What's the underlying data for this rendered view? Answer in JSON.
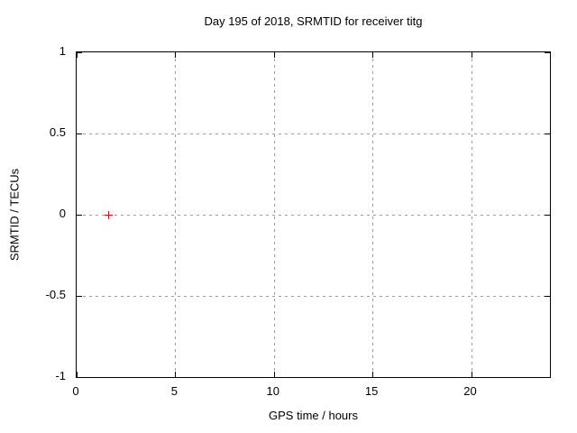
{
  "chart_data": {
    "type": "scatter",
    "title": "Day 195 of 2018, SRMTID for receiver titg",
    "xlabel": "GPS time / hours",
    "ylabel": "SRMTID / TECUs",
    "xlim": [
      0,
      24
    ],
    "ylim": [
      -1,
      1
    ],
    "xticks": [
      0,
      5,
      10,
      15,
      20
    ],
    "xtick_labels": [
      "0",
      "5",
      "10",
      "15",
      "20"
    ],
    "yticks": [
      -1,
      -0.5,
      0,
      0.5,
      1
    ],
    "ytick_labels": [
      "-1",
      "-0.5",
      "0",
      "0.5",
      "1"
    ],
    "grid": true,
    "grid_style": "dashed",
    "legend_position": "none",
    "series": [
      {
        "name": "SRMTID",
        "marker": "plus",
        "color": "#ff0000",
        "points": [
          {
            "x": 1.6,
            "y": 0
          }
        ]
      }
    ],
    "colors": {
      "background": "#ffffff",
      "border": "#000000",
      "grid": "#9b9b9b",
      "text": "#000000",
      "marker": "#ff0000"
    }
  }
}
